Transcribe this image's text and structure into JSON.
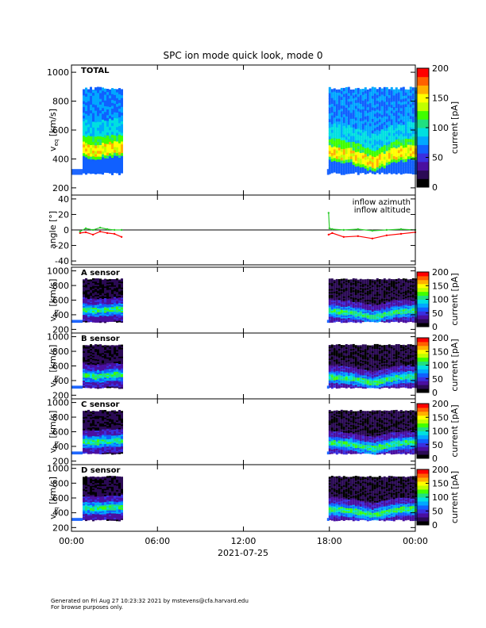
{
  "title": "SPC ion mode quick look, mode 0",
  "footer": {
    "line1": "Generated on Fri Aug 27 10:23:32 2021 by mstevens@cfa.harvard.edu",
    "line2": "For browse purposes only."
  },
  "colors": {
    "colormap": [
      "#000000",
      "#2b0a55",
      "#4a0fa0",
      "#3a2fe0",
      "#1060ff",
      "#00a8ff",
      "#00e0e0",
      "#20e080",
      "#40ff00",
      "#c0ff00",
      "#ffff00",
      "#ffb000",
      "#ff6000",
      "#ff0000"
    ],
    "azimuth": "#ff0000",
    "altitude": "#2ecc2e",
    "fill_blue": "#1e66ff"
  },
  "chart_data": {
    "type": "heatmap",
    "xlabel": "2021-07-25",
    "x_ticks": [
      "00:00",
      "06:00",
      "12:00",
      "18:00",
      "00:00"
    ],
    "x_range_hours": [
      0,
      24
    ],
    "data_intervals_hours": [
      [
        0,
        3.6
      ],
      [
        17.95,
        24
      ]
    ],
    "panels": [
      {
        "label": "TOTAL",
        "ylabel_main": "v",
        "ylabel_sub": "eq",
        "ylabel_units": " [km/s]",
        "y_ticks": [
          "200",
          "400",
          "600",
          "800",
          "1000"
        ],
        "y_range": [
          150,
          1050
        ],
        "colorbar": {
          "label": "current [pA]",
          "ticks": [
            "0",
            "50",
            "100",
            "150",
            "200"
          ],
          "range": [
            0,
            200
          ]
        },
        "peak_velocity_km_s": [
          [
            0.5,
            470
          ],
          [
            1.5,
            450
          ],
          [
            3.0,
            470
          ],
          [
            18.2,
            440
          ],
          [
            19.5,
            420
          ],
          [
            21.0,
            360
          ],
          [
            22.5,
            430
          ],
          [
            24.0,
            450
          ]
        ]
      },
      {
        "type": "line",
        "ylabel": "angle [°]",
        "y_ticks": [
          "-40",
          "-20",
          "0",
          "20",
          "40"
        ],
        "y_range": [
          -45,
          45
        ],
        "series": [
          {
            "name": "inflow azimuth",
            "x": [
              0.6,
              1.0,
              1.5,
              2.0,
              2.5,
              3.0,
              3.5,
              17.95,
              18.2,
              19.0,
              20.0,
              21.0,
              22.0,
              23.0,
              24.0
            ],
            "y": [
              -4,
              -3,
              -6,
              -2,
              -4,
              -5,
              -9,
              -6,
              -4,
              -9,
              -8,
              -11,
              -7,
              -5,
              -3
            ]
          },
          {
            "name": "inflow altitude",
            "x": [
              0.6,
              1.0,
              1.5,
              2.0,
              2.5,
              3.0,
              3.5,
              17.95,
              18.0,
              18.2,
              19.0,
              20.0,
              21.0,
              22.0,
              23.0,
              24.0
            ],
            "y": [
              -2,
              2,
              0,
              3,
              1,
              0,
              0,
              22,
              2,
              1,
              0,
              1,
              -1,
              0,
              1,
              0
            ]
          }
        ]
      },
      {
        "label": "A sensor",
        "ylabel_main": "v",
        "ylabel_sub": "eq",
        "ylabel_units": " [km/s]",
        "y_ticks": [
          "200",
          "400",
          "600",
          "800",
          "1000"
        ],
        "y_range": [
          150,
          1050
        ],
        "colorbar": {
          "label": "current [pA]",
          "ticks": [
            "0",
            "50",
            "100",
            "150",
            "200"
          ],
          "range": [
            0,
            200
          ]
        },
        "peak_velocity_km_s": [
          [
            0.5,
            470
          ],
          [
            1.5,
            450
          ],
          [
            3.0,
            470
          ],
          [
            18.2,
            440
          ],
          [
            19.5,
            420
          ],
          [
            21.0,
            360
          ],
          [
            22.5,
            430
          ],
          [
            24.0,
            450
          ]
        ]
      },
      {
        "label": "B sensor",
        "ylabel_main": "v",
        "ylabel_sub": "eq",
        "ylabel_units": " [km/s]",
        "y_ticks": [
          "200",
          "400",
          "600",
          "800",
          "1000"
        ],
        "y_range": [
          150,
          1050
        ],
        "colorbar": {
          "label": "current [pA]",
          "ticks": [
            "0",
            "50",
            "100",
            "150",
            "200"
          ],
          "range": [
            0,
            200
          ]
        },
        "peak_velocity_km_s": [
          [
            0.5,
            470
          ],
          [
            1.5,
            450
          ],
          [
            3.0,
            470
          ],
          [
            18.2,
            440
          ],
          [
            19.5,
            420
          ],
          [
            21.0,
            360
          ],
          [
            22.5,
            430
          ],
          [
            24.0,
            450
          ]
        ]
      },
      {
        "label": "C sensor",
        "ylabel_main": "v",
        "ylabel_sub": "eq",
        "ylabel_units": " [km/s]",
        "y_ticks": [
          "200",
          "400",
          "600",
          "800",
          "1000"
        ],
        "y_range": [
          150,
          1050
        ],
        "colorbar": {
          "label": "current [pA]",
          "ticks": [
            "0",
            "50",
            "100",
            "150",
            "200"
          ],
          "range": [
            0,
            200
          ]
        },
        "peak_velocity_km_s": [
          [
            0.5,
            470
          ],
          [
            1.5,
            450
          ],
          [
            3.0,
            470
          ],
          [
            18.2,
            440
          ],
          [
            19.5,
            420
          ],
          [
            21.0,
            360
          ],
          [
            22.5,
            430
          ],
          [
            24.0,
            450
          ]
        ]
      },
      {
        "label": "D sensor",
        "ylabel_main": "v",
        "ylabel_sub": "eq",
        "ylabel_units": " [km/s]",
        "y_ticks": [
          "200",
          "400",
          "600",
          "800",
          "1000"
        ],
        "y_range": [
          150,
          1050
        ],
        "colorbar": {
          "label": "current [pA]",
          "ticks": [
            "0",
            "50",
            "100",
            "150",
            "200"
          ],
          "range": [
            0,
            200
          ]
        },
        "peak_velocity_km_s": [
          [
            0.5,
            470
          ],
          [
            1.5,
            450
          ],
          [
            3.0,
            470
          ],
          [
            18.2,
            440
          ],
          [
            19.5,
            420
          ],
          [
            21.0,
            360
          ],
          [
            22.5,
            430
          ],
          [
            24.0,
            450
          ]
        ]
      }
    ]
  }
}
